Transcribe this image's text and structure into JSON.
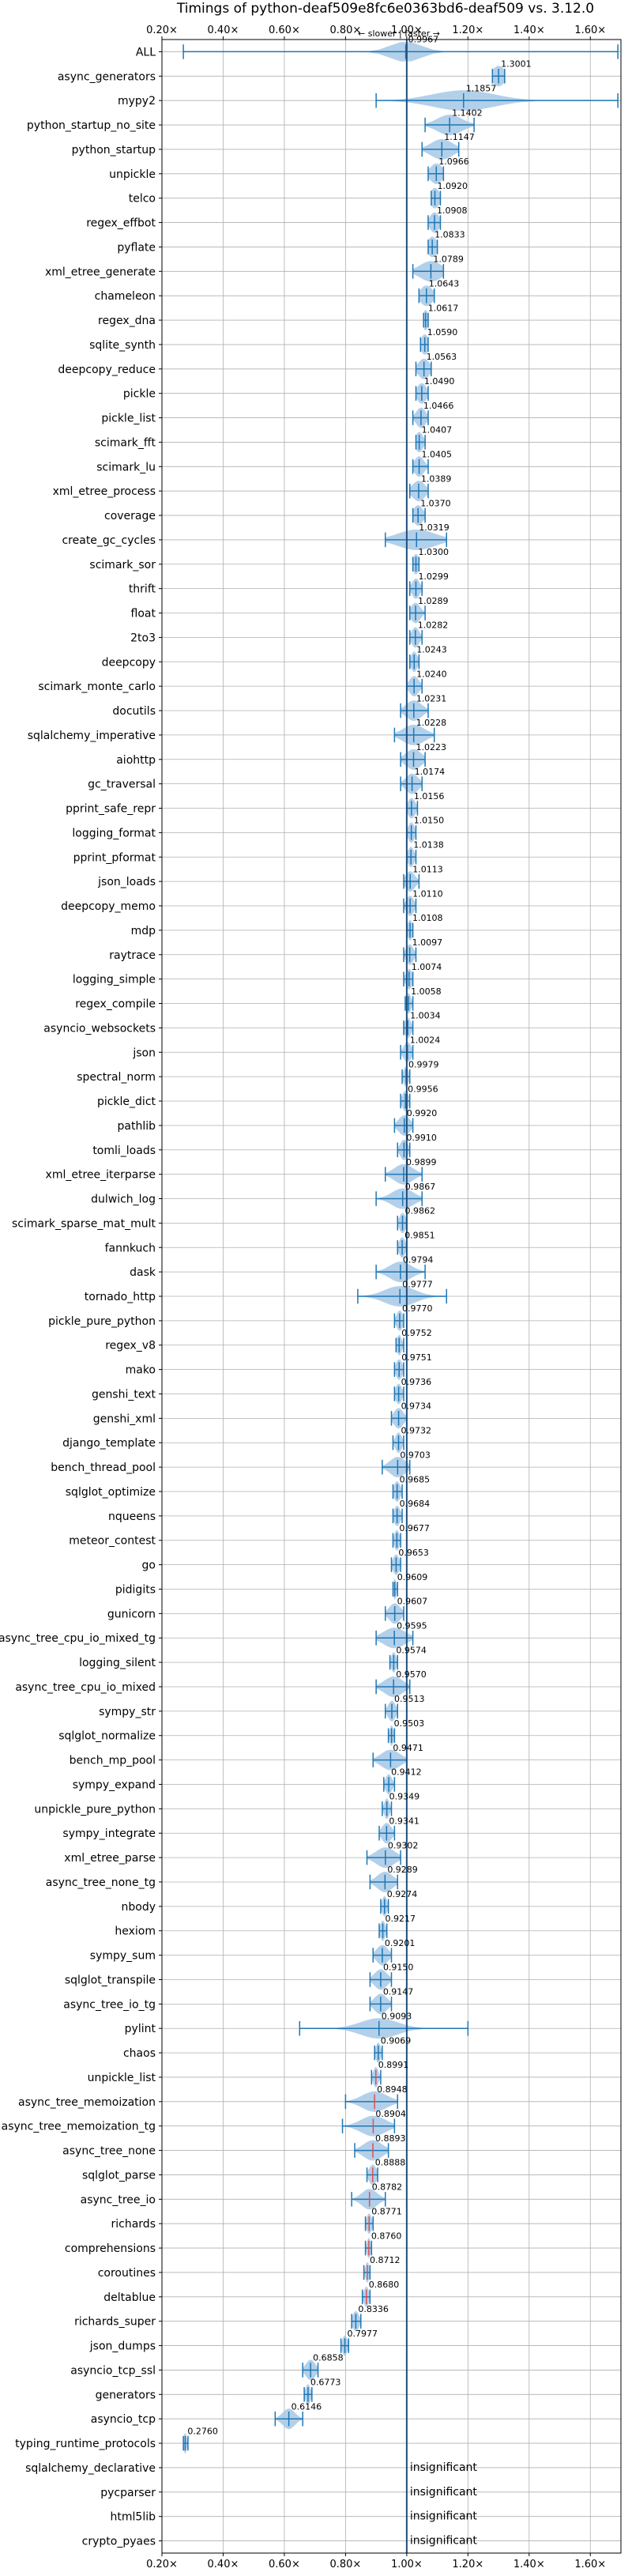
{
  "chart_data": {
    "type": "violin",
    "title": "Timings of python-deaf509e8fc6e0363bd6-deaf509 vs. 3.12.0",
    "subtitle": "← slower | faster →",
    "xlim": [
      0.2,
      1.7
    ],
    "xticks": [
      0.2,
      0.4,
      0.6,
      0.8,
      1.0,
      1.2,
      1.4,
      1.6
    ],
    "xtick_labels": [
      "0.20×",
      "0.40×",
      "0.60×",
      "0.80×",
      "1.00×",
      "1.20×",
      "1.40×",
      "1.60×"
    ],
    "grid": true,
    "reference_line": 1.0,
    "insignificant_text": "insignificant",
    "benchmarks": [
      {
        "name": "ALL",
        "value": 0.9967,
        "value_label": "0.9967",
        "min": 0.27,
        "max": 1.69,
        "spread": 0.05
      },
      {
        "name": "async_generators",
        "value": 1.3001,
        "value_label": "1.3001",
        "min": 1.28,
        "max": 1.32,
        "spread": 0.02
      },
      {
        "name": "mypy2",
        "value": 1.1857,
        "value_label": "1.1857",
        "min": 0.9,
        "max": 1.69,
        "spread": 0.1
      },
      {
        "name": "python_startup_no_site",
        "value": 1.1402,
        "value_label": "1.1402",
        "min": 1.06,
        "max": 1.22,
        "spread": 0.04
      },
      {
        "name": "python_startup",
        "value": 1.1147,
        "value_label": "1.1147",
        "min": 1.05,
        "max": 1.17,
        "spread": 0.035
      },
      {
        "name": "unpickle",
        "value": 1.0966,
        "value_label": "1.0966",
        "min": 1.07,
        "max": 1.12,
        "spread": 0.02
      },
      {
        "name": "telco",
        "value": 1.092,
        "value_label": "1.0920",
        "min": 1.08,
        "max": 1.11,
        "spread": 0.015
      },
      {
        "name": "regex_effbot",
        "value": 1.0908,
        "value_label": "1.0908",
        "min": 1.07,
        "max": 1.11,
        "spread": 0.015
      },
      {
        "name": "pyflate",
        "value": 1.0833,
        "value_label": "1.0833",
        "min": 1.07,
        "max": 1.1,
        "spread": 0.015
      },
      {
        "name": "xml_etree_generate",
        "value": 1.0789,
        "value_label": "1.0789",
        "min": 1.02,
        "max": 1.12,
        "spread": 0.035
      },
      {
        "name": "chameleon",
        "value": 1.0643,
        "value_label": "1.0643",
        "min": 1.04,
        "max": 1.09,
        "spread": 0.02
      },
      {
        "name": "regex_dna",
        "value": 1.0617,
        "value_label": "1.0617",
        "min": 1.055,
        "max": 1.07,
        "spread": 0.008
      },
      {
        "name": "sqlite_synth",
        "value": 1.059,
        "value_label": "1.0590",
        "min": 1.045,
        "max": 1.07,
        "spread": 0.012
      },
      {
        "name": "deepcopy_reduce",
        "value": 1.0563,
        "value_label": "1.0563",
        "min": 1.03,
        "max": 1.08,
        "spread": 0.018
      },
      {
        "name": "pickle",
        "value": 1.049,
        "value_label": "1.0490",
        "min": 1.03,
        "max": 1.07,
        "spread": 0.015
      },
      {
        "name": "pickle_list",
        "value": 1.0466,
        "value_label": "1.0466",
        "min": 1.02,
        "max": 1.07,
        "spread": 0.015
      },
      {
        "name": "scimark_fft",
        "value": 1.0407,
        "value_label": "1.0407",
        "min": 1.03,
        "max": 1.06,
        "spread": 0.012
      },
      {
        "name": "scimark_lu",
        "value": 1.0405,
        "value_label": "1.0405",
        "min": 1.02,
        "max": 1.07,
        "spread": 0.015
      },
      {
        "name": "xml_etree_process",
        "value": 1.0389,
        "value_label": "1.0389",
        "min": 1.01,
        "max": 1.07,
        "spread": 0.02
      },
      {
        "name": "coverage",
        "value": 1.037,
        "value_label": "1.0370",
        "min": 1.02,
        "max": 1.06,
        "spread": 0.015
      },
      {
        "name": "create_gc_cycles",
        "value": 1.0319,
        "value_label": "1.0319",
        "min": 0.93,
        "max": 1.13,
        "spread": 0.06
      },
      {
        "name": "scimark_sor",
        "value": 1.03,
        "value_label": "1.0300",
        "min": 1.02,
        "max": 1.04,
        "spread": 0.01
      },
      {
        "name": "thrift",
        "value": 1.0299,
        "value_label": "1.0299",
        "min": 1.01,
        "max": 1.05,
        "spread": 0.012
      },
      {
        "name": "float",
        "value": 1.0289,
        "value_label": "1.0289",
        "min": 1.01,
        "max": 1.06,
        "spread": 0.015
      },
      {
        "name": "2to3",
        "value": 1.0282,
        "value_label": "1.0282",
        "min": 1.01,
        "max": 1.05,
        "spread": 0.012
      },
      {
        "name": "deepcopy",
        "value": 1.0243,
        "value_label": "1.0243",
        "min": 1.01,
        "max": 1.04,
        "spread": 0.01
      },
      {
        "name": "scimark_monte_carlo",
        "value": 1.024,
        "value_label": "1.0240",
        "min": 1.0,
        "max": 1.05,
        "spread": 0.015
      },
      {
        "name": "docutils",
        "value": 1.0231,
        "value_label": "1.0231",
        "min": 0.98,
        "max": 1.07,
        "spread": 0.025
      },
      {
        "name": "sqlalchemy_imperative",
        "value": 1.0228,
        "value_label": "1.0228",
        "min": 0.96,
        "max": 1.09,
        "spread": 0.035
      },
      {
        "name": "aiohttp",
        "value": 1.0223,
        "value_label": "1.0223",
        "min": 0.98,
        "max": 1.06,
        "spread": 0.025
      },
      {
        "name": "gc_traversal",
        "value": 1.0174,
        "value_label": "1.0174",
        "min": 0.98,
        "max": 1.05,
        "spread": 0.02
      },
      {
        "name": "pprint_safe_repr",
        "value": 1.0156,
        "value_label": "1.0156",
        "min": 1.0,
        "max": 1.035,
        "spread": 0.012
      },
      {
        "name": "logging_format",
        "value": 1.015,
        "value_label": "1.0150",
        "min": 1.0,
        "max": 1.03,
        "spread": 0.01
      },
      {
        "name": "pprint_pformat",
        "value": 1.0138,
        "value_label": "1.0138",
        "min": 1.0,
        "max": 1.03,
        "spread": 0.01
      },
      {
        "name": "json_loads",
        "value": 1.0113,
        "value_label": "1.0113",
        "min": 0.99,
        "max": 1.04,
        "spread": 0.015
      },
      {
        "name": "deepcopy_memo",
        "value": 1.011,
        "value_label": "1.0110",
        "min": 0.99,
        "max": 1.03,
        "spread": 0.012
      },
      {
        "name": "mdp",
        "value": 1.0108,
        "value_label": "1.0108",
        "min": 1.0,
        "max": 1.02,
        "spread": 0.008
      },
      {
        "name": "raytrace",
        "value": 1.0097,
        "value_label": "1.0097",
        "min": 0.99,
        "max": 1.03,
        "spread": 0.012
      },
      {
        "name": "logging_simple",
        "value": 1.0074,
        "value_label": "1.0074",
        "min": 0.99,
        "max": 1.02,
        "spread": 0.01
      },
      {
        "name": "regex_compile",
        "value": 1.0058,
        "value_label": "1.0058",
        "min": 0.995,
        "max": 1.02,
        "spread": 0.008
      },
      {
        "name": "asyncio_websockets",
        "value": 1.0034,
        "value_label": "1.0034",
        "min": 0.99,
        "max": 1.02,
        "spread": 0.01
      },
      {
        "name": "json",
        "value": 1.0024,
        "value_label": "1.0024",
        "min": 0.98,
        "max": 1.02,
        "spread": 0.012
      },
      {
        "name": "spectral_norm",
        "value": 0.9979,
        "value_label": "0.9979",
        "min": 0.985,
        "max": 1.01,
        "spread": 0.008
      },
      {
        "name": "pickle_dict",
        "value": 0.9956,
        "value_label": "0.9956",
        "min": 0.98,
        "max": 1.01,
        "spread": 0.01
      },
      {
        "name": "pathlib",
        "value": 0.992,
        "value_label": "0.9920",
        "min": 0.96,
        "max": 1.02,
        "spread": 0.018
      },
      {
        "name": "tomli_loads",
        "value": 0.991,
        "value_label": "0.9910",
        "min": 0.97,
        "max": 1.01,
        "spread": 0.012
      },
      {
        "name": "xml_etree_iterparse",
        "value": 0.9899,
        "value_label": "0.9899",
        "min": 0.93,
        "max": 1.05,
        "spread": 0.03
      },
      {
        "name": "dulwich_log",
        "value": 0.9867,
        "value_label": "0.9867",
        "min": 0.9,
        "max": 1.05,
        "spread": 0.035
      },
      {
        "name": "scimark_sparse_mat_mult",
        "value": 0.9862,
        "value_label": "0.9862",
        "min": 0.97,
        "max": 1.0,
        "spread": 0.01
      },
      {
        "name": "fannkuch",
        "value": 0.9851,
        "value_label": "0.9851",
        "min": 0.97,
        "max": 1.0,
        "spread": 0.01
      },
      {
        "name": "dask",
        "value": 0.9794,
        "value_label": "0.9794",
        "min": 0.9,
        "max": 1.06,
        "spread": 0.035
      },
      {
        "name": "tornado_http",
        "value": 0.9777,
        "value_label": "0.9777",
        "min": 0.84,
        "max": 1.13,
        "spread": 0.05
      },
      {
        "name": "pickle_pure_python",
        "value": 0.977,
        "value_label": "0.9770",
        "min": 0.96,
        "max": 0.99,
        "spread": 0.01
      },
      {
        "name": "regex_v8",
        "value": 0.9752,
        "value_label": "0.9752",
        "min": 0.965,
        "max": 0.99,
        "spread": 0.008
      },
      {
        "name": "mako",
        "value": 0.9751,
        "value_label": "0.9751",
        "min": 0.96,
        "max": 0.99,
        "spread": 0.01
      },
      {
        "name": "genshi_text",
        "value": 0.9736,
        "value_label": "0.9736",
        "min": 0.96,
        "max": 0.99,
        "spread": 0.01
      },
      {
        "name": "genshi_xml",
        "value": 0.9734,
        "value_label": "0.9734",
        "min": 0.95,
        "max": 1.0,
        "spread": 0.015
      },
      {
        "name": "django_template",
        "value": 0.9732,
        "value_label": "0.9732",
        "min": 0.955,
        "max": 0.99,
        "spread": 0.01
      },
      {
        "name": "bench_thread_pool",
        "value": 0.9703,
        "value_label": "0.9703",
        "min": 0.92,
        "max": 1.01,
        "spread": 0.025
      },
      {
        "name": "sqlglot_optimize",
        "value": 0.9685,
        "value_label": "0.9685",
        "min": 0.955,
        "max": 0.985,
        "spread": 0.01
      },
      {
        "name": "nqueens",
        "value": 0.9684,
        "value_label": "0.9684",
        "min": 0.955,
        "max": 0.985,
        "spread": 0.01
      },
      {
        "name": "meteor_contest",
        "value": 0.9677,
        "value_label": "0.9677",
        "min": 0.955,
        "max": 0.98,
        "spread": 0.008
      },
      {
        "name": "go",
        "value": 0.9653,
        "value_label": "0.9653",
        "min": 0.95,
        "max": 0.98,
        "spread": 0.01
      },
      {
        "name": "pidigits",
        "value": 0.9609,
        "value_label": "0.9609",
        "min": 0.955,
        "max": 0.97,
        "spread": 0.005
      },
      {
        "name": "gunicorn",
        "value": 0.9607,
        "value_label": "0.9607",
        "min": 0.93,
        "max": 0.99,
        "spread": 0.018
      },
      {
        "name": "async_tree_cpu_io_mixed_tg",
        "value": 0.9595,
        "value_label": "0.9595",
        "min": 0.9,
        "max": 1.02,
        "spread": 0.035
      },
      {
        "name": "logging_silent",
        "value": 0.9574,
        "value_label": "0.9574",
        "min": 0.945,
        "max": 0.97,
        "spread": 0.008
      },
      {
        "name": "async_tree_cpu_io_mixed",
        "value": 0.957,
        "value_label": "0.9570",
        "min": 0.9,
        "max": 1.01,
        "spread": 0.03
      },
      {
        "name": "sympy_str",
        "value": 0.9513,
        "value_label": "0.9513",
        "min": 0.93,
        "max": 0.97,
        "spread": 0.012
      },
      {
        "name": "sqlglot_normalize",
        "value": 0.9503,
        "value_label": "0.9503",
        "min": 0.94,
        "max": 0.96,
        "spread": 0.006
      },
      {
        "name": "bench_mp_pool",
        "value": 0.9471,
        "value_label": "0.9471",
        "min": 0.89,
        "max": 1.0,
        "spread": 0.03
      },
      {
        "name": "sympy_expand",
        "value": 0.9412,
        "value_label": "0.9412",
        "min": 0.925,
        "max": 0.96,
        "spread": 0.01
      },
      {
        "name": "unpickle_pure_python",
        "value": 0.9349,
        "value_label": "0.9349",
        "min": 0.92,
        "max": 0.95,
        "spread": 0.008
      },
      {
        "name": "sympy_integrate",
        "value": 0.9341,
        "value_label": "0.9341",
        "min": 0.91,
        "max": 0.96,
        "spread": 0.015
      },
      {
        "name": "xml_etree_parse",
        "value": 0.9302,
        "value_label": "0.9302",
        "min": 0.87,
        "max": 0.98,
        "spread": 0.03
      },
      {
        "name": "async_tree_none_tg",
        "value": 0.9289,
        "value_label": "0.9289",
        "min": 0.88,
        "max": 0.97,
        "spread": 0.025
      },
      {
        "name": "nbody",
        "value": 0.9274,
        "value_label": "0.9274",
        "min": 0.915,
        "max": 0.94,
        "spread": 0.008
      },
      {
        "name": "hexiom",
        "value": 0.9217,
        "value_label": "0.9217",
        "min": 0.91,
        "max": 0.935,
        "spread": 0.008
      },
      {
        "name": "sympy_sum",
        "value": 0.9201,
        "value_label": "0.9201",
        "min": 0.89,
        "max": 0.95,
        "spread": 0.018
      },
      {
        "name": "sqlglot_transpile",
        "value": 0.915,
        "value_label": "0.9150",
        "min": 0.88,
        "max": 0.95,
        "spread": 0.02
      },
      {
        "name": "async_tree_io_tg",
        "value": 0.9147,
        "value_label": "0.9147",
        "min": 0.88,
        "max": 0.95,
        "spread": 0.02
      },
      {
        "name": "pylint",
        "value": 0.9093,
        "value_label": "0.9093",
        "min": 0.65,
        "max": 1.2,
        "spread": 0.06
      },
      {
        "name": "chaos",
        "value": 0.9069,
        "value_label": "0.9069",
        "min": 0.895,
        "max": 0.92,
        "spread": 0.008
      },
      {
        "name": "unpickle_list",
        "value": 0.8991,
        "value_label": "0.8991",
        "min": 0.885,
        "max": 0.915,
        "spread": 0.008
      },
      {
        "name": "async_tree_memoization",
        "value": 0.8948,
        "value_label": "0.8948",
        "min": 0.8,
        "max": 0.97,
        "spread": 0.04
      },
      {
        "name": "async_tree_memoization_tg",
        "value": 0.8904,
        "value_label": "0.8904",
        "min": 0.79,
        "max": 0.96,
        "spread": 0.04
      },
      {
        "name": "async_tree_none",
        "value": 0.8893,
        "value_label": "0.8893",
        "min": 0.83,
        "max": 0.94,
        "spread": 0.03
      },
      {
        "name": "sqlglot_parse",
        "value": 0.8888,
        "value_label": "0.8888",
        "min": 0.87,
        "max": 0.905,
        "spread": 0.012
      },
      {
        "name": "async_tree_io",
        "value": 0.8782,
        "value_label": "0.8782",
        "min": 0.82,
        "max": 0.93,
        "spread": 0.025
      },
      {
        "name": "richards",
        "value": 0.8771,
        "value_label": "0.8771",
        "min": 0.865,
        "max": 0.89,
        "spread": 0.008
      },
      {
        "name": "comprehensions",
        "value": 0.876,
        "value_label": "0.8760",
        "min": 0.865,
        "max": 0.885,
        "spread": 0.006
      },
      {
        "name": "coroutines",
        "value": 0.8712,
        "value_label": "0.8712",
        "min": 0.86,
        "max": 0.88,
        "spread": 0.006
      },
      {
        "name": "deltablue",
        "value": 0.868,
        "value_label": "0.8680",
        "min": 0.855,
        "max": 0.88,
        "spread": 0.008
      },
      {
        "name": "richards_super",
        "value": 0.8336,
        "value_label": "0.8336",
        "min": 0.82,
        "max": 0.85,
        "spread": 0.01
      },
      {
        "name": "json_dumps",
        "value": 0.7977,
        "value_label": "0.7977",
        "min": 0.785,
        "max": 0.81,
        "spread": 0.008
      },
      {
        "name": "asyncio_tcp_ssl",
        "value": 0.6858,
        "value_label": "0.6858",
        "min": 0.66,
        "max": 0.71,
        "spread": 0.015
      },
      {
        "name": "generators",
        "value": 0.6773,
        "value_label": "0.6773",
        "min": 0.665,
        "max": 0.69,
        "spread": 0.008
      },
      {
        "name": "asyncio_tcp",
        "value": 0.6146,
        "value_label": "0.6146",
        "min": 0.57,
        "max": 0.66,
        "spread": 0.02
      },
      {
        "name": "typing_runtime_protocols",
        "value": 0.276,
        "value_label": "0.2760",
        "min": 0.27,
        "max": 0.285,
        "spread": 0.005
      },
      {
        "name": "sqlalchemy_declarative",
        "insignificant": true
      },
      {
        "name": "pycparser",
        "insignificant": true
      },
      {
        "name": "html5lib",
        "insignificant": true
      },
      {
        "name": "crypto_pyaes",
        "insignificant": true
      }
    ]
  },
  "colors": {
    "violin": "#a6c8e6",
    "line": "#1f77b4",
    "grid": "#b0b0b0",
    "reference": "#1f4e79",
    "median_slower": "#e05050"
  }
}
